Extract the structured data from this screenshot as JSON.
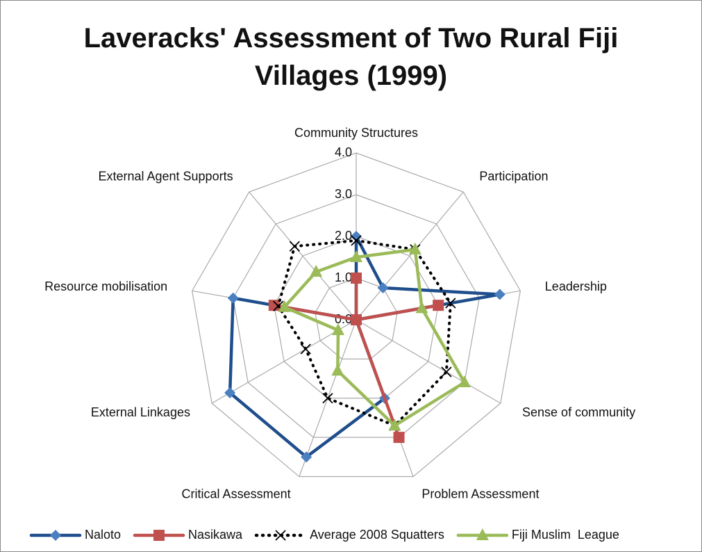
{
  "chart_data": {
    "type": "radar",
    "title": "Laveracks' Assessment of Two Rural Fiji Villages (1999)",
    "categories": [
      "Community Structures",
      "Participation",
      "Leadership",
      "Sense of community",
      "Problem Assessment",
      "Critical Assessment",
      "External Linkages",
      "Resource mobilisation",
      "External Agent Supports"
    ],
    "ylim": [
      0,
      4
    ],
    "yticks": [
      {
        "value": 0,
        "label": "0.0"
      },
      {
        "value": 1,
        "label": "1.0"
      },
      {
        "value": 2,
        "label": "2.0"
      },
      {
        "value": 3,
        "label": "3.0"
      },
      {
        "value": 4,
        "label": "4.0"
      }
    ],
    "grid": true,
    "legend": "bottom",
    "series": [
      {
        "name": "Naloto",
        "color": "#1f4e8c",
        "marker_color": "#4a7fc1",
        "marker": "diamond",
        "dash": "solid",
        "values": [
          2.0,
          1.0,
          3.5,
          0,
          2.0,
          3.5,
          3.5,
          3.0,
          0
        ]
      },
      {
        "name": "Nasikawa",
        "color": "#c0504d",
        "marker_color": "#c0504d",
        "marker": "square",
        "dash": "solid",
        "values": [
          1.0,
          0,
          2.0,
          0,
          3.0,
          0,
          0,
          2.0,
          0
        ]
      },
      {
        "name": "Average 2008 Squatters",
        "color": "#000000",
        "marker_color": "#000000",
        "marker": "x",
        "dash": "dotted",
        "values": [
          1.9,
          2.2,
          2.3,
          2.5,
          2.7,
          2.0,
          1.4,
          1.9,
          2.3
        ]
      },
      {
        "name": "Fiji Muslim  League",
        "color": "#9bbb59",
        "marker_color": "#9bbb59",
        "marker": "triangle",
        "dash": "solid",
        "values": [
          1.5,
          2.2,
          1.6,
          3.0,
          2.7,
          1.3,
          0.5,
          1.75,
          1.5
        ]
      }
    ]
  }
}
